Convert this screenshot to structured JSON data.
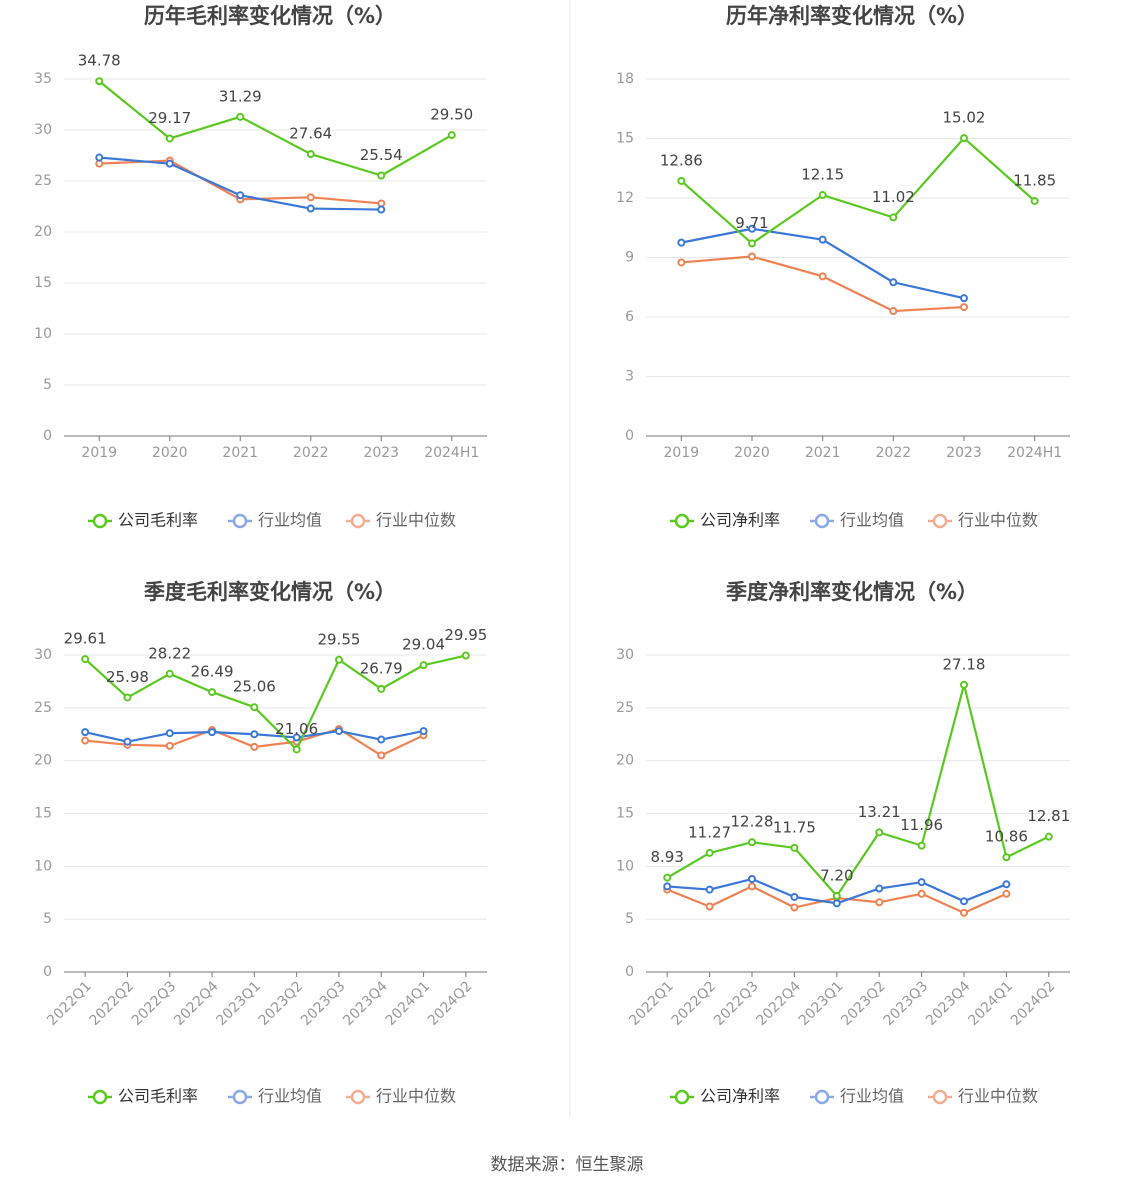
{
  "colors": {
    "company": "#5ac91f",
    "avg": "#3a78d8",
    "median": "#f08152",
    "legend_avg": "#8aa9e6",
    "legend_median": "#f5ad92",
    "grid": "#e6e8ee",
    "axis": "#777777",
    "tick_text": "#999999",
    "title_text": "#444444",
    "label_text": "#444444",
    "divider": "#e8e8e8"
  },
  "footer": {
    "source": "数据来源：恒生聚源"
  },
  "chart_data": [
    {
      "type": "line",
      "title": "历年毛利率变化情况（%）",
      "categories": [
        "2019",
        "2020",
        "2021",
        "2022",
        "2023",
        "2024H1"
      ],
      "ylim": [
        0,
        35
      ],
      "yticks": [
        0,
        5,
        10,
        15,
        20,
        25,
        30,
        35
      ],
      "grid": true,
      "legend_position": "bottom",
      "series": [
        {
          "name": "公司毛利率",
          "key": "company",
          "values": [
            34.78,
            29.17,
            31.29,
            27.64,
            25.54,
            29.5
          ],
          "labels": [
            "34.78",
            "29.17",
            "31.29",
            "27.64",
            "25.54",
            "29.50"
          ]
        },
        {
          "name": "行业均值",
          "key": "avg",
          "values": [
            27.3,
            26.7,
            23.6,
            22.3,
            22.2,
            null
          ]
        },
        {
          "name": "行业中位数",
          "key": "median",
          "values": [
            26.7,
            27.0,
            23.2,
            23.4,
            22.8,
            null
          ]
        }
      ]
    },
    {
      "type": "line",
      "title": "历年净利率变化情况（%）",
      "categories": [
        "2019",
        "2020",
        "2021",
        "2022",
        "2023",
        "2024H1"
      ],
      "ylim": [
        0,
        18
      ],
      "yticks": [
        0,
        3,
        6,
        9,
        12,
        15,
        18
      ],
      "grid": true,
      "legend_position": "bottom",
      "series": [
        {
          "name": "公司净利率",
          "key": "company",
          "values": [
            12.86,
            9.71,
            12.15,
            11.02,
            15.02,
            11.85
          ],
          "labels": [
            "12.86",
            "9.71",
            "12.15",
            "11.02",
            "15.02",
            "11.85"
          ]
        },
        {
          "name": "行业均值",
          "key": "avg",
          "values": [
            9.75,
            10.45,
            9.9,
            7.75,
            6.95,
            null
          ]
        },
        {
          "name": "行业中位数",
          "key": "median",
          "values": [
            8.75,
            9.05,
            8.05,
            6.3,
            6.5,
            null
          ]
        }
      ]
    },
    {
      "type": "line",
      "title": "季度毛利率变化情况（%）",
      "categories": [
        "2022Q1",
        "2022Q2",
        "2022Q3",
        "2022Q4",
        "2023Q1",
        "2023Q2",
        "2023Q3",
        "2023Q4",
        "2024Q1",
        "2024Q2"
      ],
      "ylim": [
        0,
        30
      ],
      "yticks": [
        0,
        5,
        10,
        15,
        20,
        25,
        30
      ],
      "grid": true,
      "legend_position": "bottom",
      "series": [
        {
          "name": "公司毛利率",
          "key": "company",
          "values": [
            29.61,
            25.98,
            28.22,
            26.49,
            25.06,
            21.06,
            29.55,
            26.79,
            29.04,
            29.95
          ],
          "labels": [
            "29.61",
            "25.98",
            "28.22",
            "26.49",
            "25.06",
            "21.06",
            "29.55",
            "26.79",
            "29.04",
            "29.95"
          ]
        },
        {
          "name": "行业均值",
          "key": "avg",
          "values": [
            22.7,
            21.8,
            22.6,
            22.7,
            22.5,
            22.2,
            22.8,
            22.0,
            22.8,
            null
          ]
        },
        {
          "name": "行业中位数",
          "key": "median",
          "values": [
            21.9,
            21.5,
            21.4,
            22.9,
            21.3,
            21.8,
            23.0,
            20.5,
            22.4,
            null
          ]
        }
      ]
    },
    {
      "type": "line",
      "title": "季度净利率变化情况（%）",
      "categories": [
        "2022Q1",
        "2022Q2",
        "2022Q3",
        "2022Q4",
        "2023Q1",
        "2023Q2",
        "2023Q3",
        "2023Q4",
        "2024Q1",
        "2024Q2"
      ],
      "ylim": [
        0,
        30
      ],
      "yticks": [
        0,
        5,
        10,
        15,
        20,
        25,
        30
      ],
      "grid": true,
      "legend_position": "bottom",
      "series": [
        {
          "name": "公司净利率",
          "key": "company",
          "values": [
            8.93,
            11.27,
            12.28,
            11.75,
            7.2,
            13.21,
            11.96,
            27.18,
            10.86,
            12.81
          ],
          "labels": [
            "8.93",
            "11.27",
            "12.28",
            "11.75",
            "7.20",
            "13.21",
            "11.96",
            "27.18",
            "10.86",
            "12.81"
          ]
        },
        {
          "name": "行业均值",
          "key": "avg",
          "values": [
            8.1,
            7.8,
            8.8,
            7.1,
            6.5,
            7.9,
            8.5,
            6.7,
            8.3,
            null
          ]
        },
        {
          "name": "行业中位数",
          "key": "median",
          "values": [
            7.8,
            6.2,
            8.1,
            6.1,
            7.0,
            6.6,
            7.4,
            5.6,
            7.4,
            null
          ]
        }
      ]
    }
  ]
}
